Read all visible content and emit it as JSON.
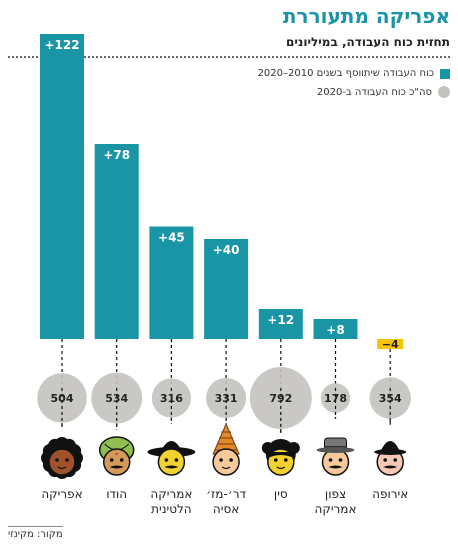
{
  "chart_data": {
    "type": "bar",
    "title": "אפריקה מתעוררת",
    "subtitle": "תחזית כוח העבודה, במיליונים",
    "categories": [
      "אפריקה",
      "הודו",
      "אמריקה הלטינית",
      "דר׳-מז׳ אסיה",
      "סין",
      "צפון אמריקה",
      "אירופה"
    ],
    "category_lines": [
      [
        "אפריקה"
      ],
      [
        "הודו"
      ],
      [
        "אמריקה",
        "הלטינית"
      ],
      [
        "דר׳-מז׳",
        "אסיה"
      ],
      [
        "סין"
      ],
      [
        "צפון",
        "אמריקה"
      ],
      [
        "אירופה"
      ]
    ],
    "series": [
      {
        "name": "כוח העבודה שיתווסף בשנים 2010–2020",
        "values": [
          122,
          78,
          45,
          40,
          12,
          8,
          -4
        ],
        "labels": [
          "+122",
          "+78",
          "+45",
          "+40",
          "+12",
          "+8",
          "−4"
        ]
      },
      {
        "name": "סה\"כ כוח העבודה ב-2020",
        "values": [
          504,
          534,
          316,
          331,
          792,
          178,
          354
        ],
        "labels": [
          "504",
          "534",
          "316",
          "331",
          "792",
          "178",
          "354"
        ]
      }
    ],
    "colors": {
      "bar": "#1a95a6",
      "negative": "#f5c400",
      "bubble": "#c3c2bf"
    },
    "icons": [
      "african-face-icon",
      "indian-face-icon",
      "latin-american-face-icon",
      "southeast-asian-face-icon",
      "chinese-face-icon",
      "north-american-face-icon",
      "european-face-icon"
    ],
    "legend_placement": "top-right",
    "grid": false
  },
  "source": "מקור: מקינזי"
}
